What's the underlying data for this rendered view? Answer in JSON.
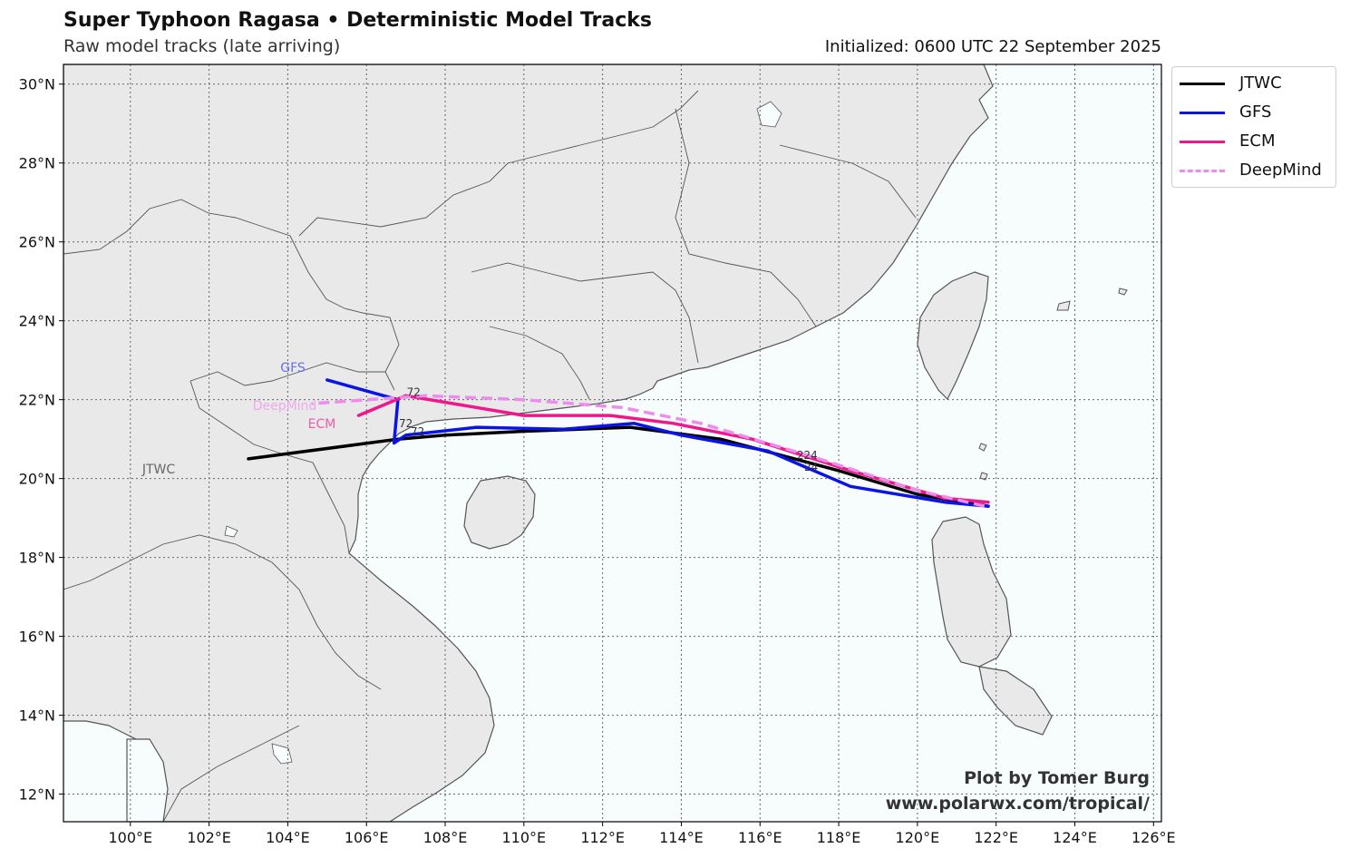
{
  "header": {
    "title": "Super Typhoon Ragasa • Deterministic Model Tracks",
    "subtitle": "Raw model tracks (late arriving)",
    "initialized": "Initialized: 0600 UTC 22 September 2025"
  },
  "map": {
    "lon_range": [
      98.3,
      126.2
    ],
    "lat_range": [
      11.3,
      30.5
    ],
    "lon_ticks": [
      "100°E",
      "102°E",
      "104°E",
      "106°E",
      "108°E",
      "110°E",
      "112°E",
      "114°E",
      "116°E",
      "118°E",
      "120°E",
      "122°E",
      "124°E",
      "126°E"
    ],
    "lat_ticks": [
      "30°N",
      "28°N",
      "26°N",
      "24°N",
      "22°N",
      "20°N",
      "18°N",
      "16°N",
      "14°N",
      "12°N"
    ],
    "grid": "dotted",
    "land_color": "#e9e9e9",
    "ocean_color": "#f7fcfd",
    "coast_color": "#555555"
  },
  "tracks": [
    {
      "name": "JTWC",
      "color": "#000000",
      "dashed": false,
      "label_text": "JTWC",
      "label_color": "#666666",
      "points": [
        [
          121.8,
          19.3
        ],
        [
          120.0,
          19.6
        ],
        [
          118.0,
          20.2
        ],
        [
          115.0,
          21.0
        ],
        [
          112.7,
          21.3
        ],
        [
          110.0,
          21.2
        ],
        [
          108.0,
          21.1
        ],
        [
          106.8,
          21.0
        ],
        [
          103.0,
          20.5
        ]
      ]
    },
    {
      "name": "GFS",
      "color": "#0a14e6",
      "dashed": false,
      "label_text": "GFS",
      "label_color": "#6b6cf0",
      "points": [
        [
          121.8,
          19.3
        ],
        [
          120.7,
          19.4
        ],
        [
          118.3,
          19.8
        ],
        [
          116.2,
          20.7
        ],
        [
          114.0,
          21.1
        ],
        [
          112.8,
          21.4
        ],
        [
          111.0,
          21.25
        ],
        [
          108.8,
          21.3
        ],
        [
          107.0,
          21.1
        ],
        [
          106.7,
          20.9
        ],
        [
          106.8,
          22.0
        ],
        [
          105.0,
          22.5
        ]
      ]
    },
    {
      "name": "ECM",
      "color": "#f0168c",
      "dashed": false,
      "label_text": "ECM",
      "label_color": "#f05aa8",
      "points": [
        [
          121.8,
          19.4
        ],
        [
          120.7,
          19.5
        ],
        [
          118.3,
          20.2
        ],
        [
          115.8,
          21.0
        ],
        [
          113.8,
          21.4
        ],
        [
          112.2,
          21.6
        ],
        [
          110.0,
          21.6
        ],
        [
          107.0,
          22.1
        ],
        [
          105.8,
          21.6
        ]
      ]
    },
    {
      "name": "DeepMind",
      "color": "#ee8cee",
      "dashed": true,
      "label_text": "DeepMind",
      "label_color": "#f0a8ec",
      "points": [
        [
          121.7,
          19.3
        ],
        [
          120.0,
          19.7
        ],
        [
          117.5,
          20.5
        ],
        [
          114.5,
          21.4
        ],
        [
          112.5,
          21.8
        ],
        [
          110.0,
          22.0
        ],
        [
          107.5,
          22.1
        ],
        [
          104.6,
          21.9
        ]
      ]
    }
  ],
  "hour_labels": [
    {
      "text": "72",
      "lon": 107.2,
      "lat": 22.1
    },
    {
      "text": "72",
      "lon": 107.0,
      "lat": 21.3
    },
    {
      "text": "72",
      "lon": 107.3,
      "lat": 21.1
    },
    {
      "text": "224",
      "lon": 117.2,
      "lat": 20.5
    },
    {
      "text": "24",
      "lon": 117.3,
      "lat": 20.2
    }
  ],
  "legend": {
    "items": [
      {
        "name": "JTWC",
        "color": "#000000",
        "dashed": false
      },
      {
        "name": "GFS",
        "color": "#0a14e6",
        "dashed": false
      },
      {
        "name": "ECM",
        "color": "#f0168c",
        "dashed": false
      },
      {
        "name": "DeepMind",
        "color": "#ee8cee",
        "dashed": true
      }
    ]
  },
  "credit": {
    "line1": "Plot by Tomer Burg",
    "line2": "www.polarwx.com/tropical/"
  }
}
